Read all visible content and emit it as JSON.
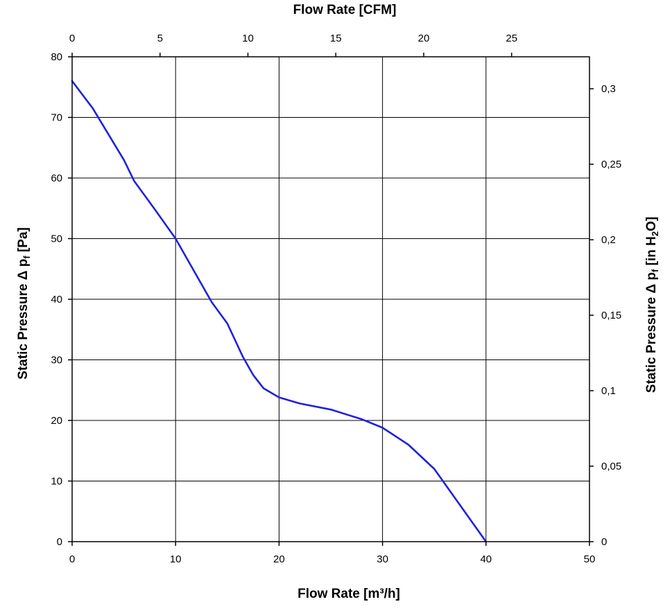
{
  "chart_data": {
    "type": "line",
    "title": "",
    "xlabel": "Flow Rate [m³/h]",
    "ylabel": {
      "prefix": "Static Pressure Δ p",
      "sub": "f",
      "suffix": " [Pa]"
    },
    "x2label": "Flow Rate [CFM]",
    "y2label": {
      "prefix": "Static Pressure Δ p",
      "sub": "f",
      "suffix": " [in H",
      "sub2": "2",
      "suffix2": "O]"
    },
    "xlim": [
      0,
      50
    ],
    "ylim": [
      0,
      80
    ],
    "x2lim": [
      0,
      29.43
    ],
    "y2lim": [
      0,
      0.3212
    ],
    "xticks": [
      0,
      10,
      20,
      30,
      40,
      50
    ],
    "yticks": [
      0,
      10,
      20,
      30,
      40,
      50,
      60,
      70,
      80
    ],
    "x2ticks": [
      0,
      5,
      10,
      15,
      20,
      25
    ],
    "y2ticks": [
      0,
      0.05,
      0.1,
      0.15,
      0.2,
      0.25,
      0.3
    ],
    "y2tick_labels": [
      "0",
      "0,05",
      "0,1",
      "0,15",
      "0,2",
      "0,25",
      "0,3"
    ],
    "grid": true,
    "series": [
      {
        "color": "#2020e0",
        "x": [
          0,
          2,
          5,
          6,
          8,
          10,
          12,
          13.5,
          15,
          16.5,
          17.5,
          18.5,
          20,
          22,
          25,
          28,
          30,
          32.5,
          35,
          37.5,
          40
        ],
        "y": [
          76,
          71.5,
          63,
          59.5,
          54.8,
          50,
          44,
          39.5,
          36,
          30.5,
          27.5,
          25.3,
          23.8,
          22.8,
          21.8,
          20.2,
          18.8,
          16,
          12,
          6,
          0
        ]
      }
    ]
  }
}
